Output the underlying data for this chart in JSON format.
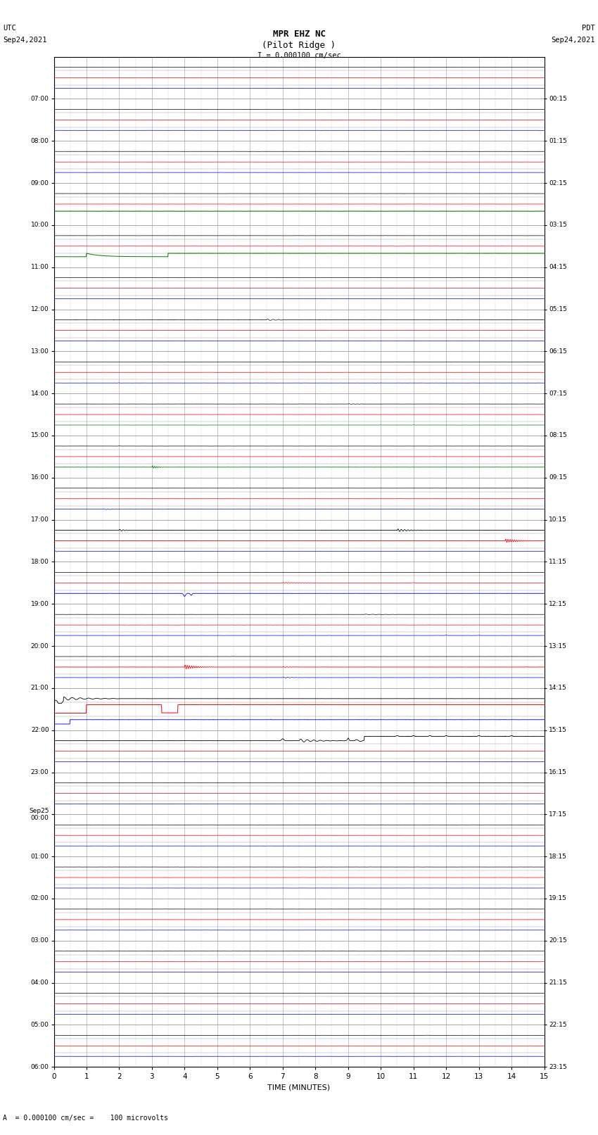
{
  "title_line1": "MPR EHZ NC",
  "title_line2": "(Pilot Ridge )",
  "title_line3": "I = 0.000100 cm/sec",
  "left_header1": "UTC",
  "left_header2": "Sep24,2021",
  "right_header1": "PDT",
  "right_header2": "Sep24,2021",
  "bottom_label": "TIME (MINUTES)",
  "bottom_note": "A  = 0.000100 cm/sec =    100 microvolts",
  "xlim": [
    0,
    15
  ],
  "xticks": [
    0,
    1,
    2,
    3,
    4,
    5,
    6,
    7,
    8,
    9,
    10,
    11,
    12,
    13,
    14,
    15
  ],
  "num_rows": 24,
  "row_labels_left": [
    "07:00",
    "08:00",
    "09:00",
    "10:00",
    "11:00",
    "12:00",
    "13:00",
    "14:00",
    "15:00",
    "16:00",
    "17:00",
    "18:00",
    "19:00",
    "20:00",
    "21:00",
    "22:00",
    "23:00",
    "Sep25\n00:00",
    "01:00",
    "02:00",
    "03:00",
    "04:00",
    "05:00",
    "06:00"
  ],
  "row_labels_right": [
    "00:15",
    "01:15",
    "02:15",
    "03:15",
    "04:15",
    "05:15",
    "06:15",
    "07:15",
    "08:15",
    "09:15",
    "10:15",
    "11:15",
    "12:15",
    "13:15",
    "14:15",
    "15:15",
    "16:15",
    "17:15",
    "18:15",
    "19:15",
    "20:15",
    "21:15",
    "22:15",
    "23:15"
  ],
  "bg_color": "#ffffff",
  "grid_color": "#999999",
  "fig_width": 8.5,
  "fig_height": 16.13
}
